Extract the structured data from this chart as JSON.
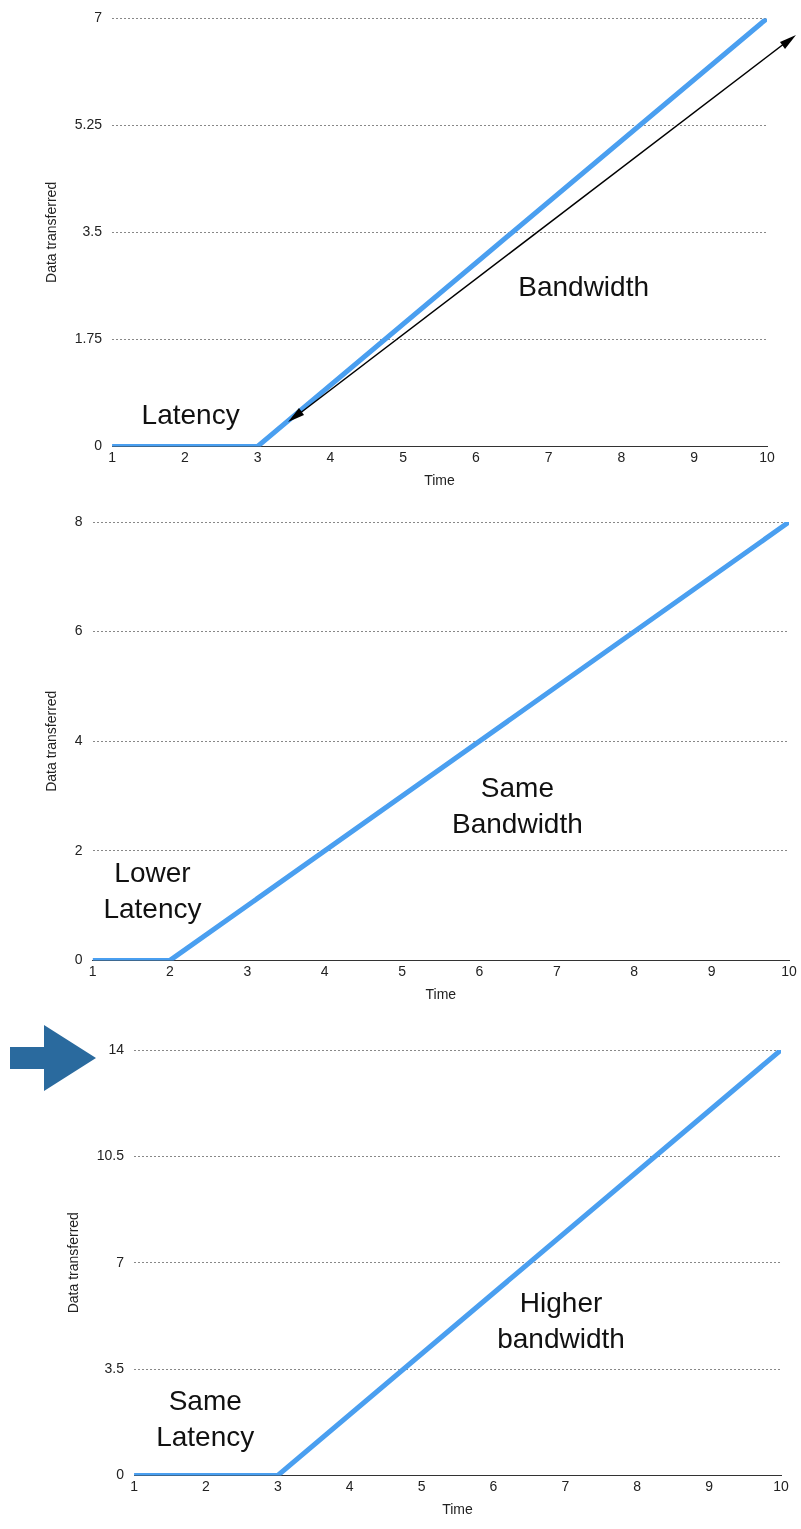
{
  "chart_data": [
    {
      "type": "line",
      "xlabel": "Time",
      "ylabel": "Data transferred",
      "x": [
        1,
        3,
        10
      ],
      "series": [
        {
          "color": "#4a9ff0",
          "values": [
            0,
            0,
            7
          ]
        }
      ],
      "xlim": [
        1,
        10
      ],
      "xticks": [
        1,
        2,
        3,
        4,
        5,
        6,
        7,
        8,
        9,
        10
      ],
      "ylim": [
        0,
        7
      ],
      "yticks": [
        0,
        1.75,
        3.5,
        5.25,
        7
      ],
      "grid": "y",
      "legend": false,
      "marker": "none",
      "line_style": "solid",
      "annotations": [
        "Latency",
        "Bandwidth"
      ]
    },
    {
      "type": "line",
      "xlabel": "Time",
      "ylabel": "Data transferred",
      "x": [
        1,
        2,
        10
      ],
      "series": [
        {
          "color": "#4a9ff0",
          "values": [
            0,
            0,
            8
          ]
        }
      ],
      "xlim": [
        1,
        10
      ],
      "xticks": [
        1,
        2,
        3,
        4,
        5,
        6,
        7,
        8,
        9,
        10
      ],
      "ylim": [
        0,
        8
      ],
      "yticks": [
        0,
        2,
        4,
        6,
        8
      ],
      "grid": "y",
      "legend": false,
      "marker": "none",
      "line_style": "solid",
      "annotations": [
        "Lower\nLatency",
        "Same\nBandwidth"
      ]
    },
    {
      "type": "line",
      "xlabel": "Time",
      "ylabel": "Data transferred",
      "x": [
        1,
        3,
        10
      ],
      "series": [
        {
          "color": "#4a9ff0",
          "values": [
            0,
            0,
            14
          ]
        }
      ],
      "xlim": [
        1,
        10
      ],
      "xticks": [
        1,
        2,
        3,
        4,
        5,
        6,
        7,
        8,
        9,
        10
      ],
      "ylim": [
        0,
        14
      ],
      "yticks": [
        0,
        3.5,
        7,
        10.5,
        14
      ],
      "grid": "y",
      "legend": false,
      "marker": "none",
      "line_style": "solid",
      "annotations": [
        "Higher\nbandwidth",
        "Same\nLatency"
      ]
    }
  ]
}
